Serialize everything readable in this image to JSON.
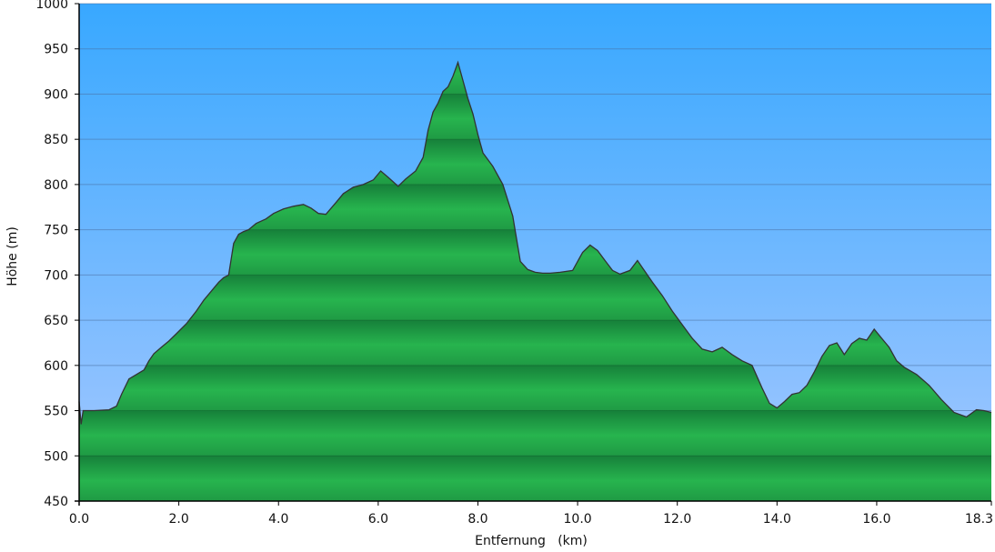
{
  "chart_data": {
    "type": "area",
    "title": "",
    "xlabel": "Entfernung   (km)",
    "ylabel": "Höhe (m)",
    "xlim": [
      0,
      18.3
    ],
    "ylim": [
      450,
      1000
    ],
    "x_ticks": [
      "0.0",
      "2.0",
      "4.0",
      "6.0",
      "8.0",
      "10.0",
      "12.0",
      "14.0",
      "16.0",
      "18.3"
    ],
    "x_tick_values": [
      0,
      2,
      4,
      6,
      8,
      10,
      12,
      14,
      16,
      18.3
    ],
    "y_ticks": [
      "450",
      "500",
      "550",
      "600",
      "650",
      "700",
      "750",
      "800",
      "850",
      "900",
      "950",
      "1000"
    ],
    "y_tick_values": [
      450,
      500,
      550,
      600,
      650,
      700,
      750,
      800,
      850,
      900,
      950,
      1000
    ],
    "grid": true,
    "colors": {
      "sky_top": "#38a8ff",
      "sky_bottom": "#a6c8ff",
      "fill_light": "#27b44e",
      "fill_dark": "#16803a",
      "outline": "#333333",
      "gridline": "#4a6fa0"
    },
    "series": [
      {
        "x": [
          0,
          0.04,
          0.08,
          0.3,
          0.6,
          0.75,
          0.85,
          1.0,
          1.15,
          1.3,
          1.4,
          1.5,
          1.65,
          1.8,
          1.95,
          2.15,
          2.35,
          2.5,
          2.65,
          2.8,
          2.9,
          3.0,
          3.1,
          3.2,
          3.3,
          3.4,
          3.55,
          3.75,
          3.9,
          4.1,
          4.3,
          4.5,
          4.65,
          4.8,
          4.95,
          5.15,
          5.3,
          5.5,
          5.7,
          5.9,
          6.05,
          6.2,
          6.4,
          6.55,
          6.75,
          6.9,
          7.0,
          7.1,
          7.2,
          7.3,
          7.4,
          7.5,
          7.6,
          7.7,
          7.8,
          7.9,
          8.0,
          8.1,
          8.3,
          8.5,
          8.7,
          8.85,
          9.0,
          9.15,
          9.3,
          9.45,
          9.65,
          9.9,
          10.1,
          10.25,
          10.4,
          10.55,
          10.7,
          10.85,
          11.05,
          11.2,
          11.3,
          11.5,
          11.7,
          11.9,
          12.1,
          12.3,
          12.5,
          12.7,
          12.9,
          13.1,
          13.3,
          13.5,
          13.7,
          13.85,
          14.0,
          14.15,
          14.3,
          14.45,
          14.6,
          14.75,
          14.9,
          15.05,
          15.2,
          15.35,
          15.5,
          15.65,
          15.8,
          15.95,
          16.1,
          16.25,
          16.4,
          16.55,
          16.8,
          17.05,
          17.3,
          17.55,
          17.8,
          18.0,
          18.15,
          18.3
        ],
        "y": [
          560,
          535,
          550,
          550,
          551,
          555,
          568,
          585,
          590,
          595,
          605,
          613,
          620,
          627,
          635,
          646,
          660,
          672,
          682,
          692,
          697,
          700,
          735,
          745,
          748,
          750,
          757,
          762,
          768,
          773,
          776,
          778,
          774,
          768,
          767,
          780,
          790,
          797,
          800,
          805,
          815,
          808,
          798,
          806,
          815,
          830,
          860,
          880,
          890,
          903,
          908,
          920,
          935,
          915,
          895,
          878,
          855,
          835,
          820,
          800,
          765,
          715,
          706,
          703,
          702,
          702,
          703,
          705,
          725,
          733,
          727,
          716,
          705,
          701,
          705,
          716,
          708,
          692,
          677,
          660,
          645,
          630,
          618,
          615,
          620,
          612,
          605,
          600,
          575,
          558,
          553,
          560,
          568,
          570,
          578,
          593,
          610,
          622,
          625,
          612,
          624,
          630,
          628,
          640,
          630,
          620,
          605,
          598,
          590,
          578,
          562,
          548,
          543,
          551,
          550,
          548
        ]
      }
    ]
  }
}
